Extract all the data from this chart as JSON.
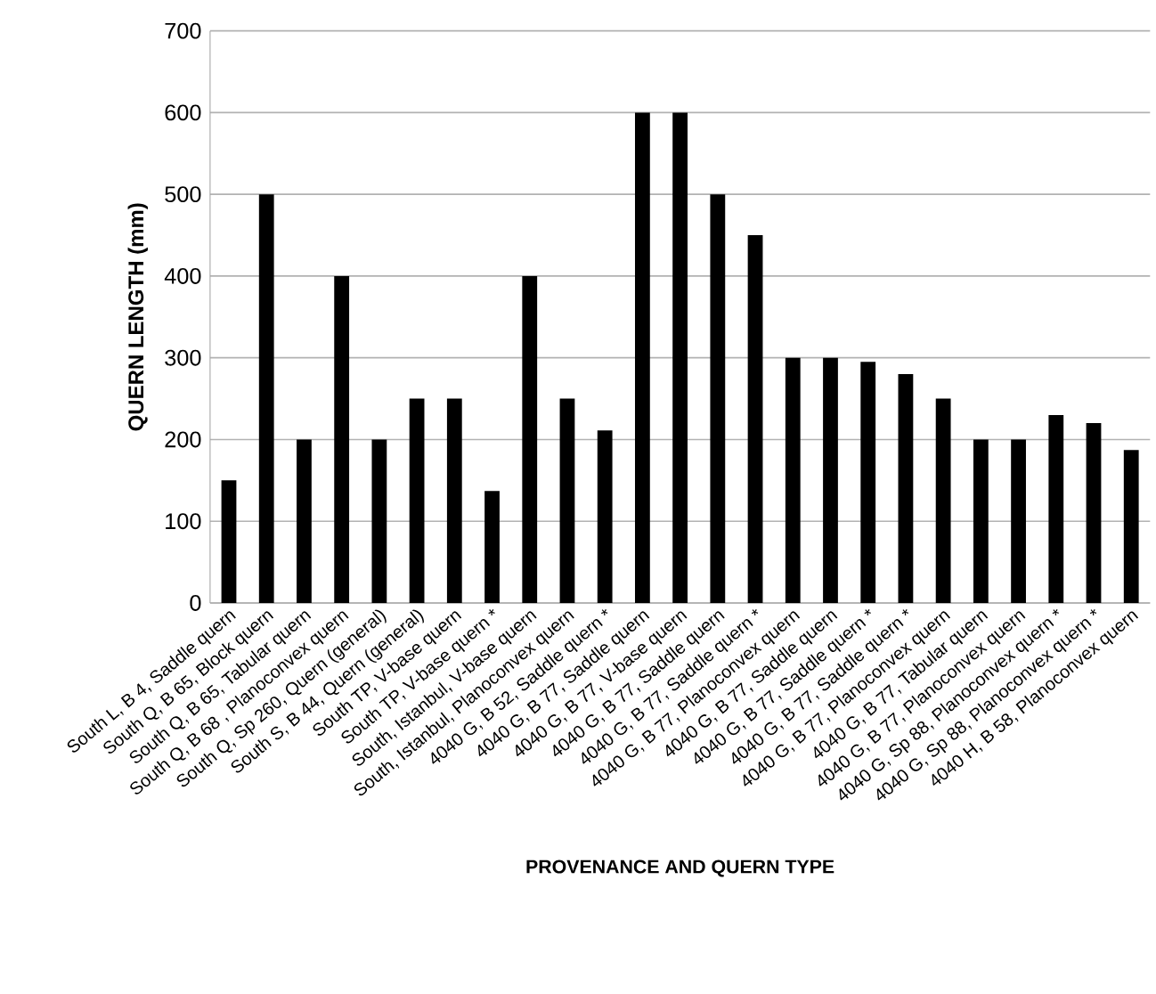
{
  "chart_data": {
    "type": "bar",
    "xlabel": "PROVENANCE AND QUERN TYPE",
    "ylabel": "QUERN LENGTH  (mm)",
    "categories": [
      "South L, B 4, Saddle quern",
      "South Q, B 65, Block quern",
      "South Q, B 65, Tabular quern",
      "South Q, B 68 , Planoconvex quern",
      "South Q, Sp 260, Quern (general)",
      "South S, B 44, Quern (general)",
      "South TP, V-base quern",
      "South TP, V-base quern *",
      "South, Istanbul, V-base quern",
      "South, Istanbul, Planoconvex quern",
      "4040 G, B 52, Saddle quern *",
      "4040 G, B 77, Saddle quern",
      "4040 G, B 77, V-base quern",
      "4040 G, B 77, Saddle quern",
      "4040 G, B 77, Saddle quern *",
      "4040 G, B 77, Planoconvex quern",
      "4040 G, B 77, Saddle quern",
      "4040 G, B 77, Saddle quern *",
      "4040 G, B 77, Saddle quern *",
      "4040 G, B 77, Planoconvex quern",
      "4040 G, B 77, Tabular quern",
      "4040 G, B 77, Planoconvex quern",
      "4040 G, Sp 88, Planoconvex quern *",
      "4040 G, Sp 88, Planoconvex quern *",
      "4040 H, B 58, Planoconvex quern"
    ],
    "values": [
      150,
      500,
      200,
      400,
      200,
      250,
      250,
      137,
      400,
      250,
      211,
      600,
      600,
      500,
      450,
      300,
      300,
      295,
      280,
      250,
      200,
      200,
      230,
      220,
      187
    ],
    "color": "#000000",
    "ylim": [
      0,
      700
    ],
    "yticks": [
      0,
      100,
      200,
      300,
      400,
      500,
      600,
      700
    ],
    "grid": "y"
  }
}
